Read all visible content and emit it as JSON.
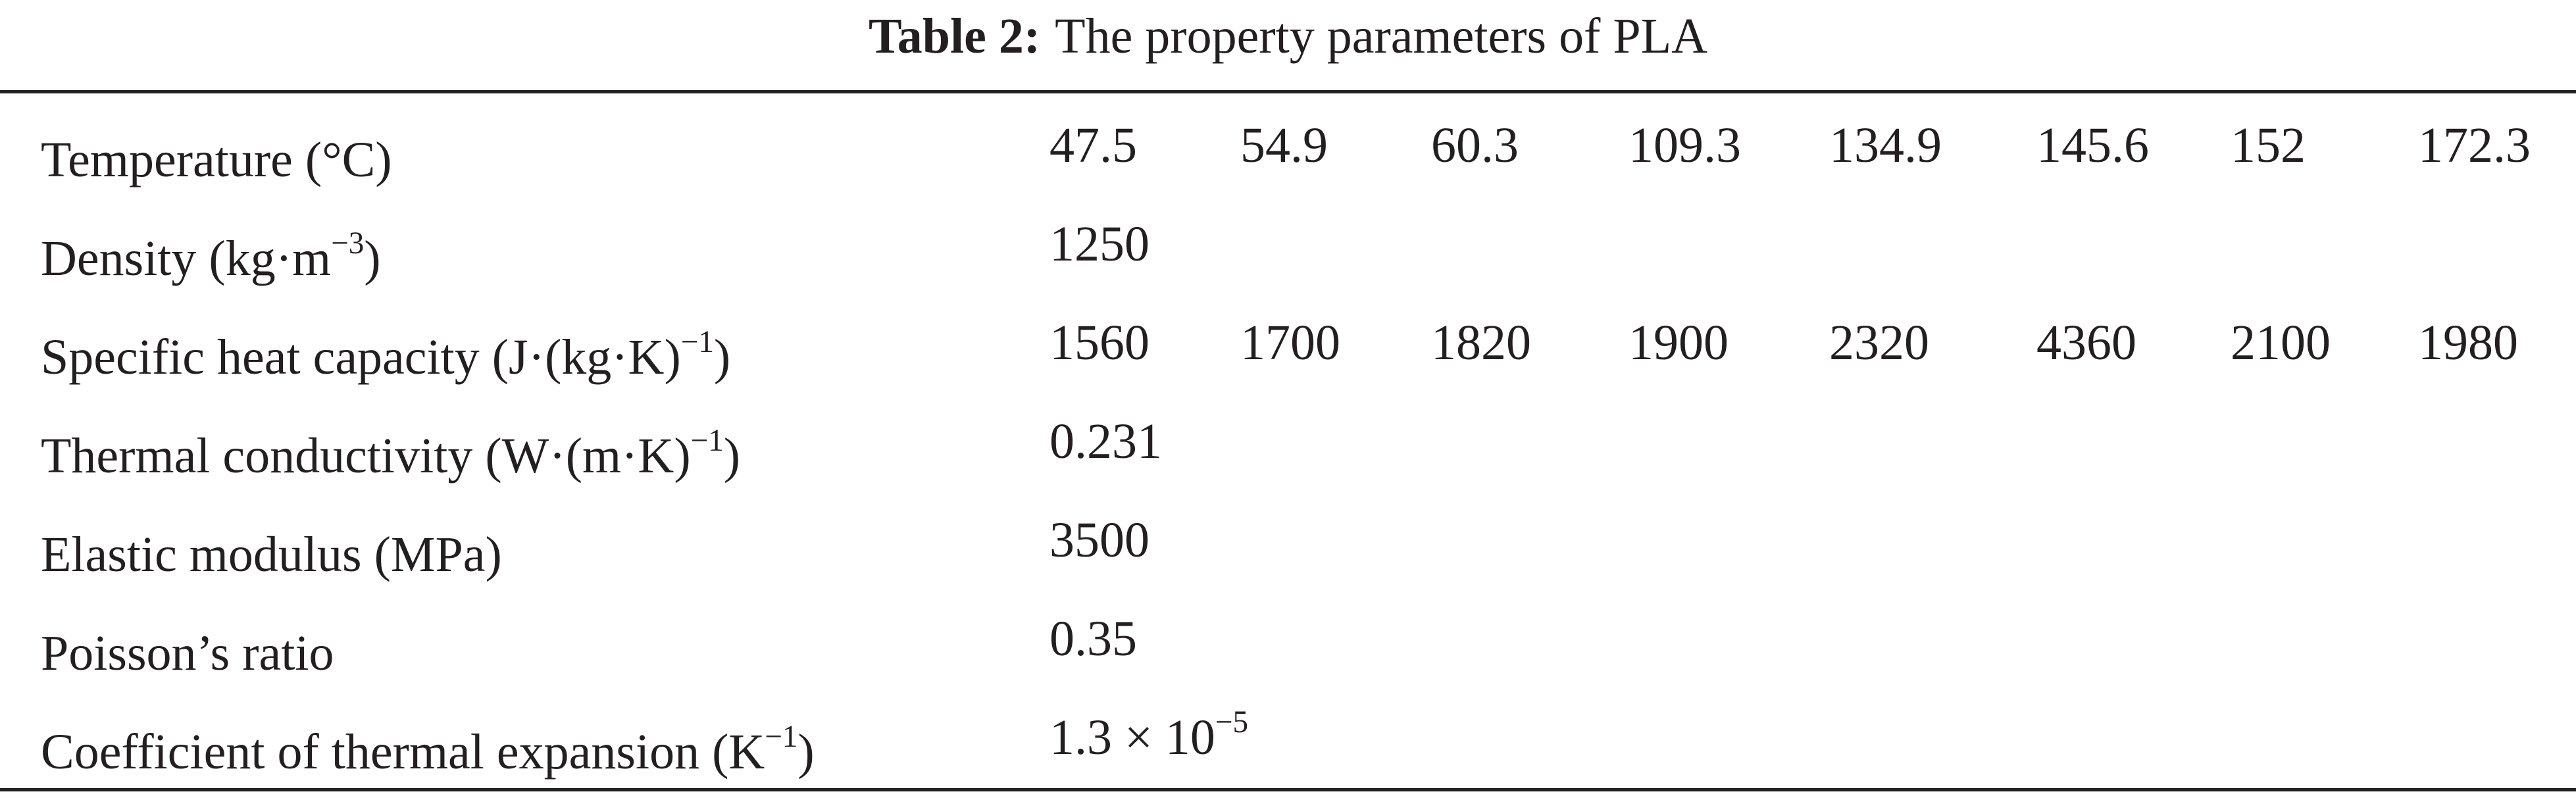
{
  "caption": {
    "label": "Table 2:",
    "text": "The property parameters of PLA"
  },
  "rows": [
    {
      "param": "Temperature (°C)",
      "values": [
        "47.5",
        "54.9",
        "60.3",
        "109.3",
        "134.9",
        "145.6",
        "152",
        "172.3"
      ]
    },
    {
      "param_main": "Density (kg·m",
      "param_sup": "−3",
      "param_tail": ")",
      "value": "1250"
    },
    {
      "param_main": "Specific heat capacity (J·(kg·K)",
      "param_sup": "−1",
      "param_tail": ")",
      "values": [
        "1560",
        "1700",
        "1820",
        "1900",
        "2320",
        "4360",
        "2100",
        "1980"
      ]
    },
    {
      "param_main": "Thermal conductivity (W·(m·K)",
      "param_sup": "−1",
      "param_tail": ")",
      "value": "0.231"
    },
    {
      "param": "Elastic modulus (MPa)",
      "value": "3500"
    },
    {
      "param": "Poisson’s ratio",
      "value": "0.35"
    },
    {
      "param_main": "Coefficient of thermal expansion (K",
      "param_sup": "−1",
      "param_tail": ")",
      "value_main": "1.3 × 10",
      "value_sup": "−5"
    }
  ]
}
